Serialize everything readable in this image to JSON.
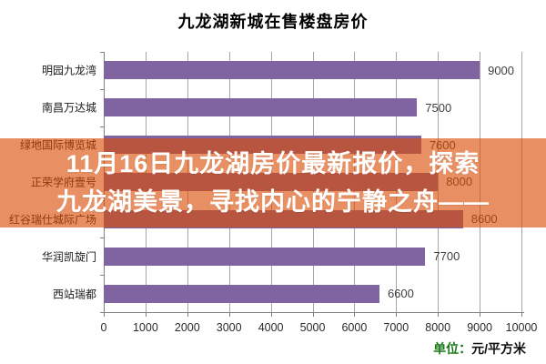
{
  "page": {
    "title": "九龙湖新城在售楼盘房价"
  },
  "overlay_banner": {
    "line1": "11月16日九龙湖房价最新报价，探索",
    "line2": "九龙湖美景，寻找内心的宁静之舟——"
  },
  "unit_label": {
    "prefix": "单位：",
    "text": "元/平方米"
  },
  "colors": {
    "bar": "#8064A2",
    "overlay-bg": "rgba(218,76,3,0.62)",
    "gridline": "#A6A6A6",
    "axis": "#808080",
    "unit-prefix": "#1A7A1A",
    "value-label": "#3F3F3F",
    "banner-text": "#FFFFFF",
    "title-text": "#000000"
  },
  "chart_data": {
    "type": "bar",
    "orientation": "horizontal",
    "title": "九龙湖新城在售楼盘房价",
    "categories": [
      "明园九龙湾",
      "南昌万达城",
      "绿地国际博览城",
      "正荣学府壹号",
      "红谷瑞仕城际广场",
      "华润凯旋门",
      "西站瑞都"
    ],
    "values": [
      9000,
      7500,
      7600,
      8000,
      8600,
      7700,
      6600
    ],
    "value_labels": [
      "9000",
      "7500",
      "7600",
      "8000",
      "8600",
      "7700",
      "6600"
    ],
    "xlim": [
      0,
      10000
    ],
    "xticks": [
      0,
      1000,
      2000,
      3000,
      4000,
      5000,
      6000,
      7000,
      8000,
      9000,
      10000
    ],
    "xlabel": "",
    "ylabel": "",
    "unit": "元/平方米",
    "grid": true,
    "legend": false
  }
}
